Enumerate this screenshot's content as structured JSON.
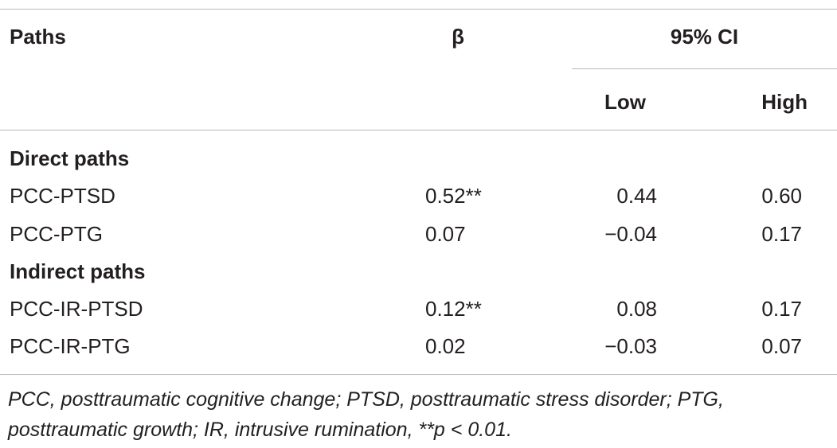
{
  "table": {
    "headers": {
      "paths": "Paths",
      "beta": "β",
      "ci": "95% CI",
      "low": "Low",
      "high": "High"
    },
    "sections": [
      {
        "title": "Direct paths",
        "rows": [
          {
            "path": "PCC-PTSD",
            "beta": "0.52**",
            "low": "0.44",
            "high": "0.60"
          },
          {
            "path": "PCC-PTG",
            "beta": "0.07",
            "low": "−0.04",
            "high": "0.17"
          }
        ]
      },
      {
        "title": "Indirect paths",
        "rows": [
          {
            "path": "PCC-IR-PTSD",
            "beta": "0.12**",
            "low": "0.08",
            "high": "0.17"
          },
          {
            "path": "PCC-IR-PTG",
            "beta": "0.02",
            "low": "−0.03",
            "high": "0.07"
          }
        ]
      }
    ],
    "footnote": "PCC, posttraumatic cognitive change; PTSD, posttraumatic stress disorder; PTG, posttraumatic growth; IR, intrusive rumination, **p < 0.01."
  }
}
